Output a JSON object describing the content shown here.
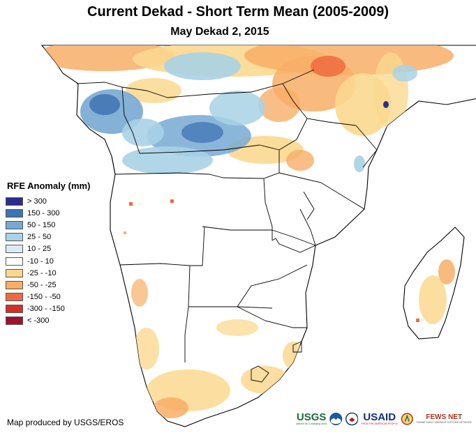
{
  "title": "Current Dekad - Short Term Mean (2005-2009)",
  "subtitle": "May Dekad 2, 2015",
  "legend": {
    "title": "RFE Anomaly (mm)",
    "items": [
      {
        "label": "> 300",
        "color": "#2b2e8c"
      },
      {
        "label": "150 - 300",
        "color": "#3f73b4"
      },
      {
        "label": "50 - 150",
        "color": "#78a9d2"
      },
      {
        "label": "25 - 50",
        "color": "#a9d2e6"
      },
      {
        "label": "10 - 25",
        "color": "#dcebf3"
      },
      {
        "label": "-10 - 10",
        "color": "#ffffff"
      },
      {
        "label": "-25 - -10",
        "color": "#fbd88f"
      },
      {
        "label": "-50 - -25",
        "color": "#f8ae66"
      },
      {
        "label": "-150 - -50",
        "color": "#ee6b41"
      },
      {
        "label": "-300 - -150",
        "color": "#d62f25"
      },
      {
        "label": "< -300",
        "color": "#a3102c"
      }
    ]
  },
  "credit": "Map produced by USGS/EROS",
  "logos": {
    "usgs": "USGS",
    "usgs_tagline": "science for a changing world",
    "noaa": "NOAA",
    "usaid": "USAID",
    "usaid_tagline": "FROM THE AMERICAN PEOPLE",
    "fews": "FEWS NET",
    "fews_tagline": "FAMINE EARLY WARNING SYSTEMS NETWORK"
  },
  "colors": {
    "land": "#ffffff",
    "border": "#000000",
    "usgs_green": "#1b6d3a",
    "usaid_blue": "#102e7c",
    "fews_red": "#b0301c"
  }
}
